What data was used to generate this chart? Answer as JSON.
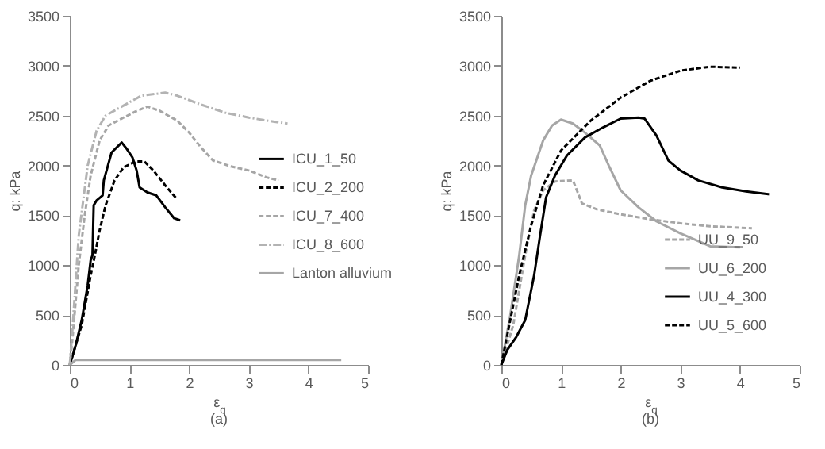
{
  "chart_data": [
    {
      "type": "line",
      "xlabel": "ε$_{q}$",
      "ylabel": "q: kPa",
      "annotations": [
        "(a)"
      ],
      "xlim": [
        0,
        5
      ],
      "xticks": [
        0,
        1,
        2,
        3,
        4,
        5
      ],
      "ylim": [
        0,
        3500
      ],
      "yticks": [
        0,
        500,
        1000,
        1500,
        2000,
        2500,
        3000,
        3500
      ],
      "grid": false,
      "legend": "right",
      "marker": "none",
      "series": [
        {
          "name": "ICU_1_50",
          "color": "#000000",
          "line_style": "solid",
          "x": [
            0,
            0.1,
            0.2,
            0.3,
            0.35,
            0.38,
            0.4,
            0.45,
            0.55,
            0.57,
            0.7,
            0.87,
            0.95,
            1.05,
            1.12,
            1.17,
            1.3,
            1.45,
            1.6,
            1.75,
            1.85
          ],
          "values": [
            0,
            200,
            450,
            800,
            1050,
            1100,
            1600,
            1650,
            1700,
            1850,
            2130,
            2230,
            2170,
            2080,
            1950,
            1780,
            1730,
            1700,
            1580,
            1470,
            1450
          ]
        },
        {
          "name": "ICU_2_200",
          "color": "#000000",
          "line_style": "dashed",
          "x": [
            0,
            0.2,
            0.35,
            0.42,
            0.5,
            0.6,
            0.75,
            0.9,
            1.1,
            1.25,
            1.4,
            1.6,
            1.8
          ],
          "values": [
            0,
            400,
            900,
            1100,
            1350,
            1600,
            1850,
            1980,
            2040,
            2040,
            1950,
            1800,
            1660
          ]
        },
        {
          "name": "ICU_7_400",
          "color": "#a6a6a6",
          "line_style": "dashed",
          "x": [
            0,
            0.05,
            0.15,
            0.25,
            0.35,
            0.5,
            0.65,
            0.9,
            1.1,
            1.3,
            1.5,
            1.8,
            2.0,
            2.2,
            2.4,
            2.7,
            3.0,
            3.3,
            3.5
          ],
          "values": [
            0,
            300,
            1000,
            1500,
            1900,
            2250,
            2400,
            2480,
            2540,
            2590,
            2550,
            2450,
            2330,
            2180,
            2050,
            1990,
            1950,
            1880,
            1850
          ]
        },
        {
          "name": "ICU_8_600",
          "color": "#b3b3b3",
          "line_style": "dashdot",
          "x": [
            0,
            0.05,
            0.15,
            0.3,
            0.45,
            0.6,
            0.9,
            1.2,
            1.6,
            1.8,
            2.2,
            2.6,
            3.0,
            3.3,
            3.65
          ],
          "values": [
            0,
            400,
            1300,
            2000,
            2350,
            2500,
            2600,
            2700,
            2730,
            2700,
            2610,
            2530,
            2480,
            2450,
            2420
          ]
        },
        {
          "name": "Lanton alluvium",
          "color": "#a6a6a6",
          "line_style": "solid",
          "x": [
            0,
            0.1,
            0.5,
            1,
            1.5,
            2,
            2.1,
            3,
            4,
            4.55
          ],
          "values": [
            0,
            50,
            50,
            50,
            50,
            50,
            50,
            50,
            50,
            50
          ]
        }
      ]
    },
    {
      "type": "line",
      "xlabel": "ε$_{q}$",
      "ylabel": "q: kPa",
      "annotations": [
        "(b)"
      ],
      "xlim": [
        0,
        5
      ],
      "xticks": [
        0,
        1,
        2,
        3,
        4,
        5
      ],
      "ylim": [
        0,
        3500
      ],
      "yticks": [
        0,
        500,
        1000,
        1500,
        2000,
        2500,
        3000,
        3500
      ],
      "grid": false,
      "legend": "bottom right",
      "marker": "none",
      "series": [
        {
          "name": "UU_9_50",
          "color": "#a6a6a6",
          "line_style": "dashed",
          "x": [
            0,
            0.2,
            0.4,
            0.55,
            0.7,
            0.9,
            1.2,
            1.3,
            1.35,
            1.6,
            2,
            2.5,
            3,
            3.5,
            4.2
          ],
          "values": [
            0,
            400,
            1100,
            1550,
            1750,
            1840,
            1850,
            1700,
            1620,
            1560,
            1510,
            1460,
            1420,
            1390,
            1370
          ]
        },
        {
          "name": "UU_6_200",
          "color": "#a6a6a6",
          "line_style": "solid",
          "x": [
            0,
            0.15,
            0.3,
            0.4,
            0.5,
            0.7,
            0.85,
            1.0,
            1.2,
            1.4,
            1.65,
            1.8,
            2,
            2.3,
            2.6,
            3,
            3.5,
            4
          ],
          "values": [
            0,
            500,
            1100,
            1600,
            1900,
            2250,
            2400,
            2460,
            2420,
            2330,
            2200,
            2000,
            1750,
            1580,
            1440,
            1320,
            1190,
            1180
          ]
        },
        {
          "name": "UU_4_300",
          "color": "#000000",
          "line_style": "solid",
          "x": [
            0,
            0.1,
            0.25,
            0.4,
            0.55,
            0.65,
            0.75,
            0.9,
            1.1,
            1.4,
            1.7,
            2,
            2.3,
            2.4,
            2.6,
            2.8,
            3,
            3.3,
            3.7,
            4.1,
            4.5
          ],
          "values": [
            0,
            150,
            280,
            450,
            900,
            1300,
            1680,
            1900,
            2100,
            2280,
            2380,
            2470,
            2480,
            2470,
            2300,
            2050,
            1950,
            1850,
            1780,
            1740,
            1710
          ]
        },
        {
          "name": "UU_5_600",
          "color": "#000000",
          "line_style": "dashed",
          "x": [
            0,
            0.1,
            0.3,
            0.5,
            0.7,
            1,
            1.5,
            2,
            2.5,
            3,
            3.5,
            4
          ],
          "values": [
            0,
            300,
            900,
            1400,
            1800,
            2150,
            2450,
            2680,
            2850,
            2950,
            2990,
            2980
          ]
        }
      ]
    }
  ]
}
